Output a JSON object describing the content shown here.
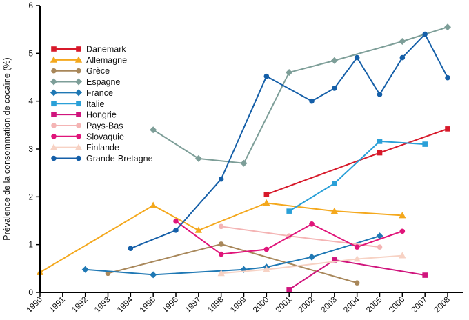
{
  "chart_data": {
    "type": "line",
    "title": "",
    "xlabel": "",
    "ylabel": "Prévalence de la  consommation de cocaïne (%)",
    "x_categories": [
      "1990",
      "1991",
      "1992",
      "1993",
      "1994",
      "1995",
      "1996",
      "1997",
      "1998",
      "1999",
      "2000",
      "2001",
      "2002",
      "2003",
      "2004",
      "2005",
      "2006",
      "2007",
      "2008"
    ],
    "xlim": [
      1990,
      2008.7
    ],
    "ylim": [
      0,
      6
    ],
    "y_ticks": [
      "0",
      "1",
      "2",
      "3",
      "4",
      "5",
      "6"
    ],
    "grid": false,
    "legend_position": "top-left",
    "series": [
      {
        "name": "Danemark",
        "color": "#d7192a",
        "marker": "square",
        "points": [
          [
            2000.0,
            2.05
          ],
          [
            2005.0,
            2.92
          ],
          [
            2008.0,
            3.42
          ]
        ]
      },
      {
        "name": "Allemagne",
        "color": "#f4a81d",
        "marker": "triangle",
        "points": [
          [
            1990.0,
            0.42
          ],
          [
            1995.0,
            1.82
          ],
          [
            1997.0,
            1.3
          ],
          [
            2000.0,
            1.87
          ],
          [
            2003.0,
            1.7
          ],
          [
            2006.0,
            1.61
          ]
        ]
      },
      {
        "name": "Grèce",
        "color": "#a8875a",
        "marker": "circle",
        "points": [
          [
            1993.0,
            0.4
          ],
          [
            1998.0,
            1.01
          ],
          [
            2004.0,
            0.2
          ]
        ]
      },
      {
        "name": "Espagne",
        "color": "#7d9e98",
        "marker": "diamond",
        "points": [
          [
            1995.0,
            3.4
          ],
          [
            1997.0,
            2.8
          ],
          [
            1999.0,
            2.7
          ],
          [
            2001.0,
            4.6
          ],
          [
            2003.0,
            4.85
          ],
          [
            2006.0,
            5.25
          ],
          [
            2008.0,
            5.55
          ]
        ]
      },
      {
        "name": "France",
        "color": "#1f78b4",
        "marker": "diamond",
        "points": [
          [
            1992.0,
            0.48
          ],
          [
            1995.0,
            0.37
          ],
          [
            1999.0,
            0.48
          ],
          [
            2000.0,
            0.53
          ],
          [
            2002.0,
            0.74
          ],
          [
            2005.0,
            1.18
          ]
        ]
      },
      {
        "name": "Italie",
        "color": "#2aa0d8",
        "marker": "square",
        "points": [
          [
            2001.0,
            1.7
          ],
          [
            2003.0,
            2.28
          ],
          [
            2005.0,
            3.16
          ],
          [
            2007.0,
            3.1
          ]
        ]
      },
      {
        "name": "Hongrie",
        "color": "#d0157d",
        "marker": "square",
        "points": [
          [
            2001.0,
            0.06
          ],
          [
            2003.0,
            0.68
          ],
          [
            2007.0,
            0.36
          ]
        ]
      },
      {
        "name": "Pays-Bas",
        "color": "#f4b4b4",
        "marker": "circle",
        "points": [
          [
            1998.0,
            1.38
          ],
          [
            2001.0,
            1.18
          ],
          [
            2005.0,
            0.95
          ]
        ]
      },
      {
        "name": "Slovaquie",
        "color": "#e0157a",
        "marker": "circle",
        "points": [
          [
            1996.0,
            1.49
          ],
          [
            1998.0,
            0.8
          ],
          [
            2000.0,
            0.9
          ],
          [
            2002.0,
            1.43
          ],
          [
            2004.0,
            0.95
          ],
          [
            2006.0,
            1.28
          ]
        ]
      },
      {
        "name": "Finlande",
        "color": "#f7d2c4",
        "marker": "triangle",
        "points": [
          [
            1998.0,
            0.4
          ],
          [
            2000.0,
            0.48
          ],
          [
            2004.0,
            0.7
          ],
          [
            2006.0,
            0.77
          ]
        ]
      },
      {
        "name": "Grande-Bretagne",
        "color": "#155fa8",
        "marker": "circle",
        "points": [
          [
            1994.0,
            0.92
          ],
          [
            1996.0,
            1.3
          ],
          [
            1998.0,
            2.37
          ],
          [
            2000.0,
            4.52
          ],
          [
            2002.0,
            4.0
          ],
          [
            2003.0,
            4.27
          ],
          [
            2004.0,
            4.91
          ],
          [
            2005.0,
            4.14
          ],
          [
            2006.0,
            4.91
          ],
          [
            2007.0,
            5.4
          ],
          [
            2008.0,
            4.49
          ]
        ]
      }
    ]
  }
}
